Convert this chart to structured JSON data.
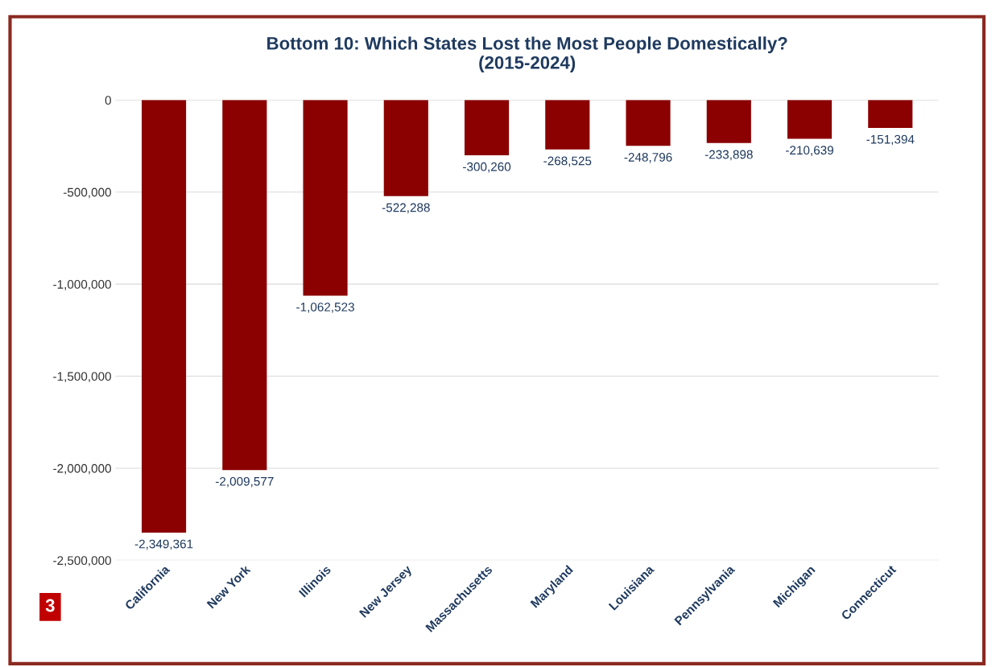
{
  "chart_data": {
    "type": "bar",
    "title": "Bottom 10: Which States Lost the Most People Domestically?\n(2015-2024)",
    "categories": [
      "California",
      "New York",
      "Illinois",
      "New Jersey",
      "Massachusetts",
      "Maryland",
      "Louisiana",
      "Pennsylvania",
      "Michigan",
      "Connecticut"
    ],
    "values": [
      -2349361,
      -2009577,
      -1062523,
      -522288,
      -300260,
      -268525,
      -248796,
      -233898,
      -210639,
      -151394
    ],
    "value_labels": [
      "-2,349,361",
      "-2,009,577",
      "-1,062,523",
      "-522,288",
      "-300,260",
      "-268,525",
      "-248,796",
      "-233,898",
      "-210,639",
      "-151,394"
    ],
    "color": "#8b0000",
    "ylim": [
      -2500000,
      0
    ],
    "yticks": [
      {
        "value": -2500000,
        "label": "-2,500,000"
      },
      {
        "value": -2000000,
        "label": "-2,000,000"
      },
      {
        "value": -1500000,
        "label": "-1,500,000"
      },
      {
        "value": -1000000,
        "label": "-1,000,000"
      },
      {
        "value": -500000,
        "label": "-500,000"
      },
      0
    ],
    "grid": "y",
    "annotations": [
      "3"
    ]
  }
}
